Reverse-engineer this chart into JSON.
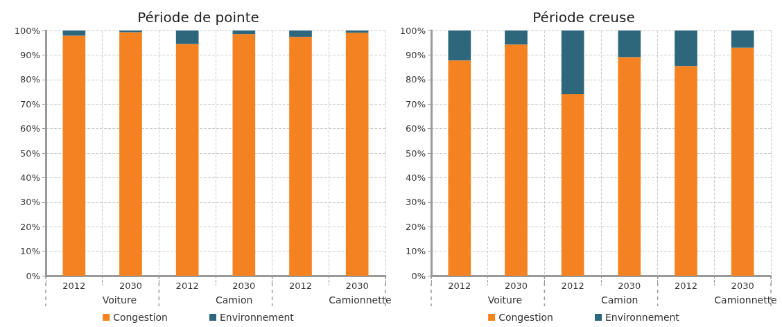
{
  "chart_data": [
    {
      "type": "bar",
      "title": "Période de pointe",
      "stacked": true,
      "categories": [
        "2012",
        "2030",
        "2012",
        "2030",
        "2012",
        "2030"
      ],
      "annotations": [
        "Voiture",
        "Camion",
        "Camionnette"
      ],
      "series": [
        {
          "name": "Congestion",
          "color": "#f58220",
          "values": [
            97.9,
            99.3,
            94.5,
            98.5,
            97.4,
            99.1
          ]
        },
        {
          "name": "Environnement",
          "color": "#2e677c",
          "values": [
            2.1,
            0.7,
            5.5,
            1.5,
            2.6,
            0.9
          ]
        }
      ],
      "ylim": [
        0,
        100
      ],
      "yticks": [
        {
          "value": 0,
          "label": "0%"
        },
        {
          "value": 10,
          "label": "10%"
        },
        {
          "value": 20,
          "label": "20%"
        },
        {
          "value": 30,
          "label": "30%"
        },
        {
          "value": 40,
          "label": "40%"
        },
        {
          "value": 50,
          "label": "50%"
        },
        {
          "value": 60,
          "label": "60%"
        },
        {
          "value": 70,
          "label": "70%"
        },
        {
          "value": 80,
          "label": "80%"
        },
        {
          "value": 90,
          "label": "90%"
        },
        {
          "value": 100,
          "label": "100%"
        }
      ],
      "grid": true,
      "legend": "bottom"
    },
    {
      "type": "bar",
      "title": "Période creuse",
      "stacked": true,
      "categories": [
        "2012",
        "2030",
        "2012",
        "2030",
        "2012",
        "2030"
      ],
      "annotations": [
        "Voiture",
        "Camion",
        "Camionnette"
      ],
      "series": [
        {
          "name": "Congestion",
          "color": "#f58220",
          "values": [
            87.8,
            94.3,
            74.0,
            89.1,
            85.5,
            93.0
          ]
        },
        {
          "name": "Environnement",
          "color": "#2e677c",
          "values": [
            12.2,
            5.7,
            26.0,
            10.9,
            14.5,
            7.0
          ]
        }
      ],
      "ylim": [
        0,
        100
      ],
      "yticks": [
        {
          "value": 0,
          "label": "0%"
        },
        {
          "value": 10,
          "label": "10%"
        },
        {
          "value": 20,
          "label": "20%"
        },
        {
          "value": 30,
          "label": "30%"
        },
        {
          "value": 40,
          "label": "40%"
        },
        {
          "value": 50,
          "label": "50%"
        },
        {
          "value": 60,
          "label": "60%"
        },
        {
          "value": 70,
          "label": "70%"
        },
        {
          "value": 80,
          "label": "80%"
        },
        {
          "value": 90,
          "label": "90%"
        },
        {
          "value": 100,
          "label": "100%"
        }
      ],
      "grid": true,
      "legend": "bottom"
    }
  ]
}
